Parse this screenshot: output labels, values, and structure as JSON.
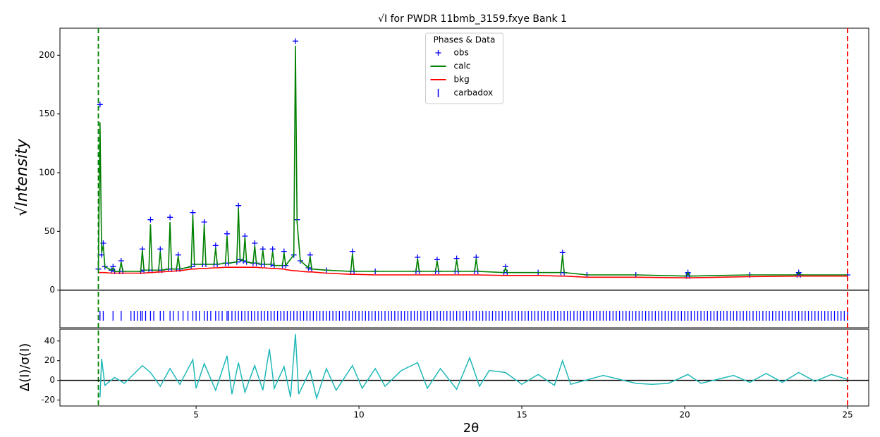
{
  "chart_data": [
    {
      "type": "powder",
      "title": "√I for PWDR 11bmb_3159.fxye Bank 1",
      "ylabel": "√Intensity",
      "xlim": [
        0.82,
        25.65
      ],
      "ylim": [
        -32,
        223
      ],
      "yticks": [
        0,
        50,
        100,
        150,
        200
      ],
      "legend": {
        "title": "Phases & Data",
        "loc": "upper center"
      },
      "x": [
        2.0,
        2.05,
        2.1,
        2.15,
        2.2,
        2.4,
        2.45,
        2.5,
        2.65,
        2.7,
        2.75,
        3.3,
        3.35,
        3.4,
        3.55,
        3.6,
        3.65,
        3.85,
        3.9,
        3.95,
        4.15,
        4.2,
        4.25,
        4.4,
        4.45,
        4.5,
        4.85,
        4.9,
        4.95,
        5.2,
        5.25,
        5.3,
        5.55,
        5.6,
        5.65,
        5.9,
        5.95,
        6.0,
        6.25,
        6.3,
        6.35,
        6.45,
        6.5,
        6.55,
        6.75,
        6.8,
        6.85,
        7.0,
        7.05,
        7.1,
        7.3,
        7.35,
        7.4,
        7.65,
        7.7,
        7.75,
        8.0,
        8.05,
        8.1,
        8.2,
        8.45,
        8.5,
        8.55,
        9.0,
        9.75,
        9.8,
        9.85,
        10.5,
        11.75,
        11.8,
        11.85,
        12.35,
        12.4,
        12.45,
        12.95,
        13.0,
        13.05,
        13.55,
        13.6,
        13.65,
        14.45,
        14.5,
        14.55,
        15.5,
        16.2,
        16.25,
        16.3,
        17.0,
        18.5,
        20.05,
        20.1,
        20.15,
        22.0,
        23.45,
        23.5,
        23.55,
        25.0
      ],
      "series": [
        {
          "name": "obs",
          "color": "#0000ff",
          "marker": "+",
          "values": [
            18,
            158,
            30,
            40,
            20,
            17,
            20,
            16,
            16,
            25,
            16,
            16,
            35,
            17,
            17,
            60,
            17,
            17,
            35,
            17,
            18,
            62,
            18,
            18,
            30,
            18,
            20,
            66,
            22,
            22,
            58,
            22,
            22,
            38,
            22,
            23,
            48,
            23,
            24,
            72,
            26,
            25,
            46,
            24,
            23,
            40,
            23,
            22,
            35,
            22,
            22,
            35,
            21,
            21,
            33,
            21,
            30,
            212,
            60,
            25,
            19,
            30,
            18,
            17,
            16,
            33,
            16,
            16,
            16,
            28,
            16,
            16,
            26,
            16,
            16,
            27,
            16,
            16,
            28,
            16,
            15,
            20,
            15,
            15,
            15,
            32,
            15,
            13,
            13,
            12,
            15,
            12,
            13,
            13,
            15,
            13,
            13
          ]
        },
        {
          "name": "calc",
          "color": "#008000",
          "values": [
            17,
            143,
            32,
            38,
            20,
            17,
            19,
            16,
            16,
            24,
            16,
            16,
            34,
            17,
            17,
            56,
            17,
            17,
            33,
            17,
            18,
            58,
            18,
            18,
            29,
            18,
            20,
            64,
            22,
            22,
            56,
            22,
            22,
            36,
            22,
            23,
            46,
            23,
            24,
            70,
            26,
            25,
            45,
            24,
            23,
            38,
            23,
            22,
            34,
            22,
            22,
            33,
            21,
            21,
            32,
            21,
            30,
            208,
            58,
            25,
            19,
            29,
            18,
            17,
            16,
            31,
            16,
            16,
            16,
            27,
            16,
            16,
            25,
            16,
            16,
            26,
            16,
            16,
            27,
            16,
            15,
            19,
            15,
            15,
            15,
            30,
            15,
            13,
            13,
            12,
            15,
            12,
            13,
            13,
            15,
            13,
            13
          ]
        },
        {
          "name": "bkg",
          "color": "#ff0000",
          "values": [
            15,
            15,
            15,
            15,
            15,
            14.5,
            14.5,
            14.5,
            14.5,
            14.5,
            14.5,
            14.5,
            14.5,
            14.5,
            15,
            15,
            15,
            15.5,
            15.5,
            15.5,
            16,
            16,
            16,
            16.5,
            16.5,
            16.5,
            18,
            18,
            18,
            18.5,
            18.5,
            18.5,
            19,
            19,
            19,
            19.5,
            19.5,
            19.5,
            19.5,
            19.5,
            19.5,
            19.5,
            19.5,
            19.5,
            19.5,
            19.5,
            19.5,
            19,
            19,
            19,
            18.5,
            18.5,
            18.5,
            18,
            18,
            17.5,
            16.5,
            16.5,
            16.5,
            16,
            15.5,
            15.5,
            15.5,
            14.5,
            13.5,
            13.5,
            13.5,
            13,
            13,
            13,
            13,
            13,
            13,
            13,
            13,
            13,
            13,
            13,
            13,
            13,
            12.5,
            12.5,
            12.5,
            12.5,
            12,
            12,
            12,
            11,
            11,
            10.5,
            10.5,
            10.5,
            11.5,
            12,
            12,
            12,
            12
          ]
        }
      ],
      "reflections": {
        "name": "carbadox",
        "color": "#0000ff",
        "positions": [
          2.05,
          2.15,
          2.45,
          2.7,
          3.0,
          3.1,
          3.2,
          3.3,
          3.35,
          3.45,
          3.6,
          3.7,
          3.9,
          4.0,
          4.2,
          4.3,
          4.45,
          4.6,
          4.75,
          4.9,
          5.0,
          5.1,
          5.25,
          5.35,
          5.45,
          5.6,
          5.7,
          5.8,
          5.95,
          6.0,
          6.1,
          6.2,
          6.3,
          6.4,
          6.5,
          6.6,
          6.7,
          6.8,
          6.9,
          7.0,
          7.1,
          7.2,
          7.3,
          7.4,
          7.5,
          7.6,
          7.7,
          7.8,
          7.9,
          8.0,
          8.1,
          8.2,
          8.3,
          8.4,
          8.5,
          8.6,
          8.7,
          8.8,
          8.9,
          9.0,
          9.1,
          9.2,
          9.3,
          9.4,
          9.5,
          9.6,
          9.7,
          9.8,
          9.9,
          10.0,
          10.1,
          10.2,
          10.3,
          10.4,
          10.5,
          10.6,
          10.7,
          10.8,
          10.9,
          11.0,
          11.1,
          11.2,
          11.3,
          11.4,
          11.5,
          11.6,
          11.7,
          11.8,
          11.9,
          12.0,
          12.1,
          12.2,
          12.3,
          12.4,
          12.5,
          12.6,
          12.7,
          12.8,
          12.9,
          13.0,
          13.1,
          13.2,
          13.3,
          13.4,
          13.5,
          13.6,
          13.7,
          13.8,
          13.9,
          14.0,
          14.1,
          14.2,
          14.3,
          14.4,
          14.5,
          14.6,
          14.7,
          14.8,
          14.9,
          15.0,
          15.1,
          15.2,
          15.3,
          15.4,
          15.5,
          15.6,
          15.7,
          15.8,
          15.9,
          16.0,
          16.1,
          16.2,
          16.3,
          16.4,
          16.5,
          16.6,
          16.7,
          16.8,
          16.9,
          17.0,
          17.1,
          17.2,
          17.3,
          17.4,
          17.5,
          17.6,
          17.7,
          17.8,
          17.9,
          18.0,
          18.1,
          18.2,
          18.3,
          18.4,
          18.5,
          18.6,
          18.7,
          18.8,
          18.9,
          19.0,
          19.1,
          19.2,
          19.3,
          19.4,
          19.5,
          19.6,
          19.7,
          19.8,
          19.9,
          20.0,
          20.1,
          20.2,
          20.3,
          20.4,
          20.5,
          20.6,
          20.7,
          20.8,
          20.9,
          21.0,
          21.1,
          21.2,
          21.3,
          21.4,
          21.5,
          21.6,
          21.7,
          21.8,
          21.9,
          22.0,
          22.1,
          22.2,
          22.3,
          22.4,
          22.5,
          22.6,
          22.7,
          22.8,
          22.9,
          23.0,
          23.1,
          23.2,
          23.3,
          23.4,
          23.5,
          23.6,
          23.7,
          23.8,
          23.9,
          24.0,
          24.1,
          24.2,
          24.3,
          24.4,
          24.5,
          24.6,
          24.7,
          24.8,
          24.9,
          25.0
        ]
      },
      "limits": [
        {
          "value": 2.0,
          "color": "#008000"
        },
        {
          "value": 25.0,
          "color": "#ff0000"
        }
      ]
    },
    {
      "type": "line",
      "ylabel": "Δ(I)/σ(I)",
      "xlabel": "2θ",
      "color": "#20b8b8",
      "xlim": [
        0.82,
        25.65
      ],
      "ylim": [
        -26,
        52
      ],
      "yticks": [
        -20,
        0,
        20,
        40
      ],
      "xticks": [
        5,
        10,
        15,
        20,
        25
      ],
      "x": [
        2.05,
        2.1,
        2.2,
        2.5,
        2.8,
        3.35,
        3.6,
        3.9,
        4.2,
        4.5,
        4.9,
        5.0,
        5.25,
        5.6,
        5.95,
        6.1,
        6.3,
        6.5,
        6.8,
        7.05,
        7.25,
        7.4,
        7.7,
        7.9,
        8.05,
        8.15,
        8.5,
        8.7,
        9.0,
        9.3,
        9.8,
        10.1,
        10.5,
        10.8,
        11.3,
        11.8,
        12.1,
        12.5,
        13.0,
        13.4,
        13.7,
        14.0,
        14.5,
        15.0,
        15.5,
        16.0,
        16.25,
        16.5,
        17.5,
        18.5,
        19.0,
        19.5,
        20.1,
        20.5,
        21.5,
        22.0,
        22.5,
        23.0,
        23.5,
        24.0,
        24.5,
        25.0
      ],
      "values": [
        -17,
        22,
        -5,
        3,
        -3,
        15,
        8,
        -6,
        12,
        -4,
        21,
        -8,
        17,
        -10,
        25,
        -14,
        18,
        -12,
        15,
        -10,
        32,
        -8,
        14,
        -17,
        47,
        -14,
        10,
        -18,
        12,
        -10,
        15,
        -8,
        12,
        -6,
        10,
        18,
        -8,
        12,
        -9,
        23,
        -6,
        10,
        8,
        -4,
        6,
        -5,
        20,
        -4,
        5,
        -3,
        -4,
        -3,
        6,
        -3,
        5,
        -2,
        7,
        -2,
        8,
        -1,
        6,
        1
      ]
    }
  ]
}
